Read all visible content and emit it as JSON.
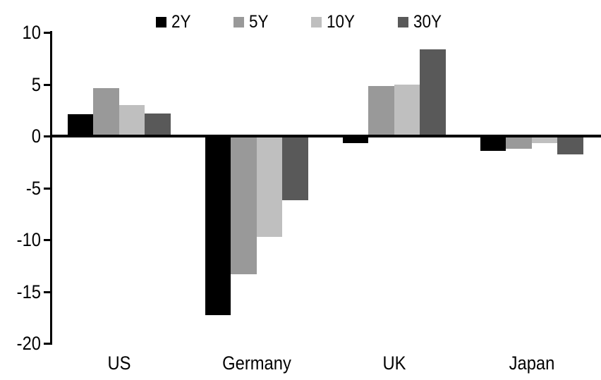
{
  "chart_data": {
    "type": "bar",
    "categories": [
      "US",
      "Germany",
      "UK",
      "Japan"
    ],
    "series": [
      {
        "name": "2Y",
        "color": "#000000",
        "values": [
          2.1,
          -17.3,
          -0.7,
          -1.4
        ]
      },
      {
        "name": "5Y",
        "color": "#999999",
        "values": [
          4.6,
          -13.3,
          4.8,
          -1.2
        ]
      },
      {
        "name": "10Y",
        "color": "#BFBFBF",
        "values": [
          3.0,
          -9.7,
          5.0,
          -0.7
        ]
      },
      {
        "name": "30Y",
        "color": "#595959",
        "values": [
          2.2,
          -6.2,
          8.4,
          -1.8
        ]
      }
    ],
    "title": "",
    "xlabel": "",
    "ylabel": "",
    "ylim": [
      -20,
      10
    ],
    "yticks": [
      10,
      5,
      0,
      -5,
      -10,
      -15,
      -20
    ],
    "grid": false,
    "legend_position": "top",
    "axis_color": "#000000",
    "background_color": "#FFFFFF"
  }
}
